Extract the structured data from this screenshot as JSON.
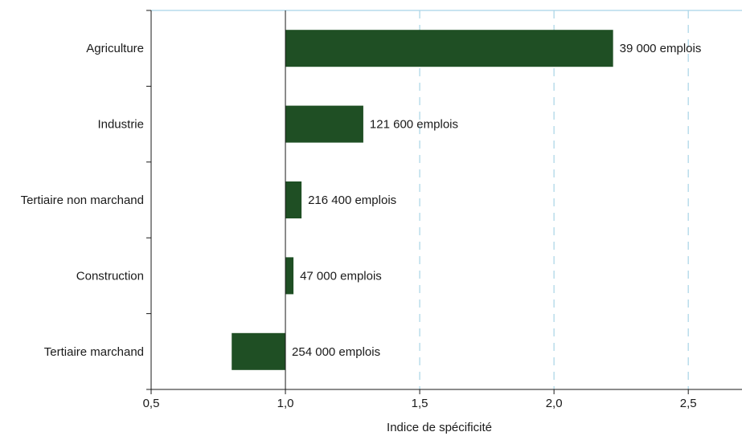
{
  "chart_data": {
    "type": "bar",
    "orientation": "horizontal",
    "baseline": 1.0,
    "categories": [
      "Agriculture",
      "Industrie",
      "Tertiaire non marchand",
      "Construction",
      "Tertiaire marchand"
    ],
    "values": [
      2.22,
      1.29,
      1.06,
      1.03,
      0.8
    ],
    "bar_labels": [
      "39 000 emplois",
      "121 600 emplois",
      "216 400 emplois",
      "47 000 emplois",
      "254 000 emplois"
    ],
    "xlabel": "Indice de spécificité",
    "ylabel": "",
    "xlim": [
      0.5,
      2.7
    ],
    "xticks": [
      0.5,
      1.0,
      1.5,
      2.0,
      2.5
    ],
    "xtick_labels": [
      "0,5",
      "1,0",
      "1,5",
      "2,0",
      "2,5"
    ],
    "grid": "vertical dashed",
    "colors": {
      "bar": "#1f4f24",
      "grid": "#a8d4e6",
      "axis": "#1a1a1a"
    }
  }
}
